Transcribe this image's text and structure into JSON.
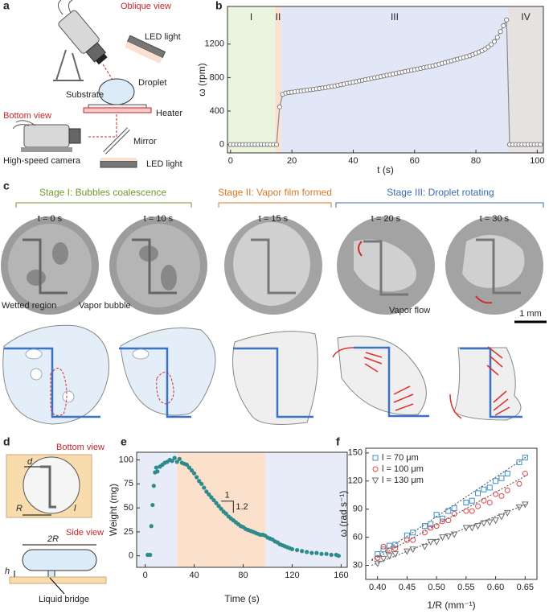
{
  "panel_labels": [
    "a",
    "b",
    "c",
    "d",
    "e",
    "f"
  ],
  "panel_a": {
    "oblique_view": "Oblique view",
    "led_light_top": "LED light",
    "droplet": "Droplet",
    "substrate": "Substrate",
    "heater": "Heater",
    "bottom_view": "Bottom view",
    "mirror": "Mirror",
    "camera": "High-speed camera",
    "led_light_bottom": "LED light"
  },
  "panel_c": {
    "stages": [
      "Stage I: Bubbles coalescence",
      "Stage II: Vapor film formed",
      "Stage III: Droplet rotating"
    ],
    "times": [
      "t = 0 s",
      "t = 10 s",
      "t = 15 s",
      "t = 20 s",
      "t = 30 s"
    ],
    "wetted_region": "Wetted region",
    "vapor_bubble": "Vapor bubble",
    "vapor_flow": "Vapor flow",
    "scale_bar": "1 mm"
  },
  "panel_d": {
    "bottom_view": "Bottom view",
    "d": "d",
    "R": "R",
    "l": "l",
    "side_view": "Side view",
    "two_R": "2R",
    "h": "h",
    "liquid_bridge": "Liquid bridge"
  },
  "chart_data": [
    {
      "type": "line",
      "x_label": "t (s)",
      "y_label": "ω (rpm)",
      "xlim": [
        -1,
        102
      ],
      "ylim": [
        -100,
        1650
      ],
      "xticks": [
        0,
        20,
        40,
        60,
        80,
        100
      ],
      "yticks": [
        0,
        400,
        800,
        1200
      ],
      "grid": false,
      "regions": [
        {
          "label": "I",
          "from": -1,
          "to": 14.5,
          "color": "#eaf5df"
        },
        {
          "label": "II",
          "from": 14.5,
          "to": 16.5,
          "color": "#fbe1cf"
        },
        {
          "label": "III",
          "from": 16.5,
          "to": 90.5,
          "color": "#e2e7f7"
        },
        {
          "label": "IV",
          "from": 90.5,
          "to": 102,
          "color": "#e6e2e2"
        }
      ],
      "series": [
        {
          "color": "#8a8a8a",
          "marker": "open-circle",
          "x": [
            0,
            1,
            2,
            3,
            4,
            5,
            6,
            7,
            8,
            9,
            10,
            11,
            12,
            13,
            14,
            15,
            16,
            17,
            18,
            19,
            20,
            21,
            22,
            23,
            24,
            25,
            26,
            27,
            28,
            29,
            30,
            31,
            32,
            33,
            34,
            35,
            36,
            37,
            38,
            39,
            40,
            41,
            42,
            43,
            44,
            45,
            46,
            47,
            48,
            49,
            50,
            51,
            52,
            53,
            54,
            55,
            56,
            57,
            58,
            59,
            60,
            61,
            62,
            63,
            64,
            65,
            66,
            67,
            68,
            69,
            70,
            71,
            72,
            73,
            74,
            75,
            76,
            77,
            78,
            79,
            80,
            81,
            82,
            83,
            84,
            85,
            86,
            87,
            88,
            89,
            90,
            91,
            92,
            93,
            94,
            95,
            96,
            97,
            98,
            99,
            100,
            101
          ],
          "values": [
            0,
            0,
            0,
            0,
            0,
            0,
            0,
            0,
            0,
            0,
            0,
            0,
            0,
            0,
            0,
            0,
            450,
            600,
            615,
            620,
            625,
            630,
            635,
            640,
            645,
            650,
            655,
            660,
            665,
            670,
            675,
            680,
            688,
            695,
            700,
            708,
            715,
            722,
            730,
            738,
            745,
            752,
            760,
            768,
            775,
            782,
            790,
            798,
            805,
            812,
            820,
            828,
            835,
            843,
            850,
            858,
            865,
            873,
            880,
            888,
            895,
            903,
            910,
            918,
            925,
            933,
            940,
            950,
            960,
            970,
            980,
            990,
            1000,
            1010,
            1020,
            1030,
            1040,
            1050,
            1060,
            1075,
            1090,
            1105,
            1120,
            1140,
            1165,
            1195,
            1230,
            1280,
            1350,
            1420,
            1490,
            0,
            0,
            0,
            0,
            0,
            0,
            0,
            0,
            0,
            0,
            0
          ]
        }
      ]
    },
    {
      "type": "scatter",
      "x_label": "Time (s)",
      "y_label": "Weight (mg)",
      "xlim": [
        -7,
        165
      ],
      "ylim": [
        -12,
        108
      ],
      "xticks": [
        0,
        40,
        80,
        120,
        160
      ],
      "yticks": [
        0,
        25,
        50,
        75,
        100
      ],
      "grid": false,
      "regions": [
        {
          "from": -7,
          "to": 26,
          "color": "#e8ecf8"
        },
        {
          "from": 26,
          "to": 98,
          "color": "#fbe0cc"
        },
        {
          "from": 98,
          "to": 165,
          "color": "#e8ecf8"
        }
      ],
      "annotations": {
        "run": "1",
        "rise": "1.2"
      },
      "series": [
        {
          "color": "#2e8b8b",
          "marker": "dot",
          "x": [
            2,
            4,
            5,
            6,
            7,
            8,
            9,
            10,
            12,
            14,
            16,
            18,
            20,
            22,
            24,
            26,
            28,
            30,
            32,
            34,
            36,
            38,
            40,
            42,
            44,
            46,
            48,
            50,
            52,
            54,
            56,
            58,
            60,
            62,
            64,
            66,
            68,
            70,
            72,
            74,
            76,
            78,
            80,
            82,
            84,
            86,
            88,
            90,
            92,
            94,
            96,
            98,
            100,
            102,
            104,
            106,
            108,
            110,
            112,
            114,
            116,
            118,
            120,
            124,
            128,
            132,
            136,
            140,
            144,
            148,
            152,
            156,
            158
          ],
          "values": [
            1,
            1,
            31,
            53,
            73,
            87,
            92,
            88,
            93,
            95,
            97,
            98,
            100,
            99,
            102,
            98,
            101,
            97,
            96,
            95,
            92,
            89,
            86,
            82,
            78,
            75,
            71,
            67,
            64,
            61,
            58,
            55,
            52,
            49,
            46,
            44,
            41,
            39,
            37,
            35,
            33,
            31,
            30,
            28,
            27,
            26,
            25,
            24,
            23,
            22,
            22,
            21,
            19,
            18,
            17,
            15,
            14,
            12,
            11,
            10,
            9,
            8,
            7,
            6,
            5,
            4,
            3,
            3,
            2,
            2,
            1,
            1,
            0
          ]
        }
      ]
    },
    {
      "type": "scatter",
      "x_label": "1/R (mm⁻¹)",
      "y_label": "ω (rad s⁻¹)",
      "xlim": [
        0.38,
        0.67
      ],
      "ylim": [
        15,
        155
      ],
      "xticks": [
        {
          "value": 0.4,
          "label": "0.40"
        },
        0.45,
        {
          "value": 0.5,
          "label": "0.50"
        },
        0.55,
        {
          "value": 0.6,
          "label": "0.60"
        },
        0.65
      ],
      "yticks": [
        30,
        60,
        90,
        120,
        150
      ],
      "grid": false,
      "legend": "top-left",
      "series": [
        {
          "name": "l = 70 μm",
          "color": "#3b8fc9",
          "marker": "square",
          "x": [
            0.4,
            0.41,
            0.42,
            0.43,
            0.45,
            0.46,
            0.48,
            0.49,
            0.5,
            0.51,
            0.52,
            0.53,
            0.55,
            0.56,
            0.57,
            0.58,
            0.59,
            0.6,
            0.61,
            0.62,
            0.64,
            0.65
          ],
          "values": [
            42,
            47,
            51,
            52,
            62,
            65,
            72,
            74,
            84,
            80,
            88,
            91,
            97,
            99,
            107,
            111,
            113,
            120,
            123,
            128,
            140,
            145
          ],
          "fit_x": [
            0.39,
            0.655
          ],
          "fit_y": [
            36,
            147
          ]
        },
        {
          "name": "l = 100 μm",
          "color": "#e0464b",
          "marker": "circle",
          "x": [
            0.4,
            0.41,
            0.42,
            0.43,
            0.45,
            0.46,
            0.48,
            0.49,
            0.5,
            0.51,
            0.52,
            0.53,
            0.55,
            0.56,
            0.57,
            0.58,
            0.59,
            0.6,
            0.61,
            0.62,
            0.64,
            0.65
          ],
          "values": [
            38,
            50,
            46,
            48,
            57,
            57,
            65,
            70,
            72,
            77,
            78,
            85,
            88,
            88,
            93,
            99,
            97,
            106,
            104,
            110,
            117,
            128
          ],
          "fit_x": [
            0.39,
            0.655
          ],
          "fit_y": [
            35,
            127
          ]
        },
        {
          "name": "l = 130 μm",
          "color": "#6e6e6e",
          "marker": "triangle",
          "x": [
            0.4,
            0.41,
            0.42,
            0.43,
            0.45,
            0.46,
            0.48,
            0.49,
            0.5,
            0.51,
            0.52,
            0.53,
            0.55,
            0.56,
            0.57,
            0.58,
            0.59,
            0.6,
            0.61,
            0.62,
            0.64,
            0.65
          ],
          "values": [
            32,
            37,
            40,
            42,
            45,
            47,
            50,
            55,
            55,
            60,
            61,
            63,
            70,
            70,
            72,
            75,
            76,
            78,
            82,
            86,
            92,
            95
          ],
          "fit_x": [
            0.39,
            0.655
          ],
          "fit_y": [
            30,
            96
          ]
        }
      ]
    }
  ]
}
